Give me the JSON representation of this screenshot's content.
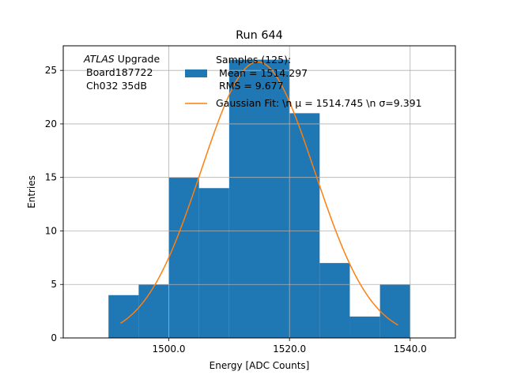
{
  "chart_data": {
    "type": "bar",
    "title": "Run 644",
    "xlabel": "Energy [ADC Counts]",
    "ylabel": "Entries",
    "xlim": [
      1482.5,
      1547.5
    ],
    "ylim": [
      0,
      27.3
    ],
    "grid": true,
    "x_ticks": [
      1500,
      1520,
      1540
    ],
    "x_tick_labels": [
      "1500.0",
      "1520.0",
      "1540.0"
    ],
    "y_ticks": [
      0,
      5,
      10,
      15,
      20,
      25
    ],
    "y_tick_labels": [
      "0",
      "5",
      "10",
      "15",
      "20",
      "25"
    ],
    "annotation": {
      "italic": "ATLAS",
      "rest": " Upgrade",
      "line2": "Board187722",
      "line3": "Ch032 35dB"
    },
    "legend": {
      "placement": "top-right",
      "hist_lines": [
        "Samples (125):",
        " Mean = 1514.297",
        " RMS = 9.677"
      ],
      "fit_label": "Gaussian Fit: \\n μ = 1514.745 \\n σ=9.391"
    },
    "histogram": {
      "name": "Samples (125)",
      "color": "#1f77b4",
      "bin_edges": [
        1490,
        1495,
        1500,
        1505,
        1510,
        1515,
        1520,
        1525,
        1530,
        1535,
        1540
      ],
      "counts": [
        4,
        5,
        15,
        14,
        26,
        26,
        21,
        7,
        2,
        5
      ]
    },
    "fit": {
      "name": "Gaussian Fit",
      "color": "#ff7f0e",
      "amplitude": 25.8,
      "mean": 1514.745,
      "sigma": 9.391,
      "x_range": [
        1492,
        1538
      ]
    }
  }
}
